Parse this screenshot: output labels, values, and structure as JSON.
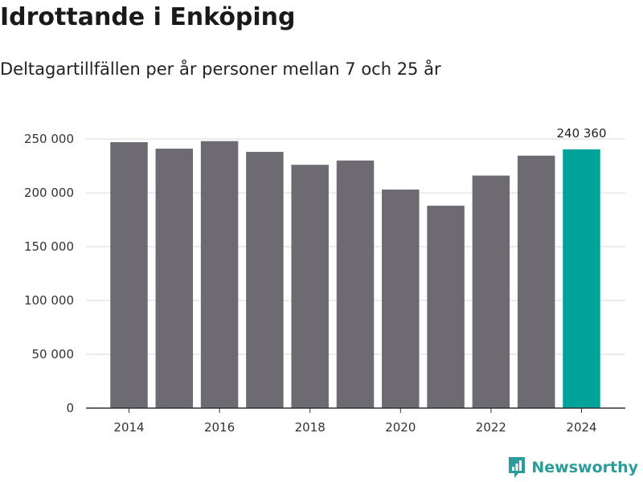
{
  "header": {
    "title": "Idrottande i Enköping",
    "subtitle": "Deltagartillfällen per år personer mellan 7 och 25 år"
  },
  "brand": {
    "name": "Newsworthy",
    "icon": "newsworthy-logo-icon",
    "color": "#2b9c9b"
  },
  "colors": {
    "bar": "#6d6b71",
    "highlight": "#00a39a",
    "grid": "#d9d9d9",
    "axis": "#333333"
  },
  "chart_data": {
    "type": "bar",
    "title": "Idrottande i Enköping",
    "subtitle": "Deltagartillfällen per år personer mellan 7 och 25 år",
    "xlabel": "",
    "ylabel": "",
    "categories": [
      "2014",
      "2015",
      "2016",
      "2017",
      "2018",
      "2019",
      "2020",
      "2021",
      "2022",
      "2023",
      "2024"
    ],
    "values": [
      247000,
      241000,
      248000,
      238000,
      226000,
      230000,
      203000,
      188000,
      216000,
      234500,
      240360
    ],
    "ylim": [
      0,
      250000
    ],
    "yticks": [
      0,
      50000,
      100000,
      150000,
      200000,
      250000
    ],
    "ytick_labels": [
      "0",
      "50 000",
      "100 000",
      "150 000",
      "200 000",
      "250 000"
    ],
    "xtick_labels": [
      "2014",
      "2016",
      "2018",
      "2020",
      "2022",
      "2024"
    ],
    "highlight_index": 10,
    "data_labels": [
      {
        "index": 10,
        "text": "240 360"
      }
    ],
    "grid": true,
    "legend": "none"
  }
}
